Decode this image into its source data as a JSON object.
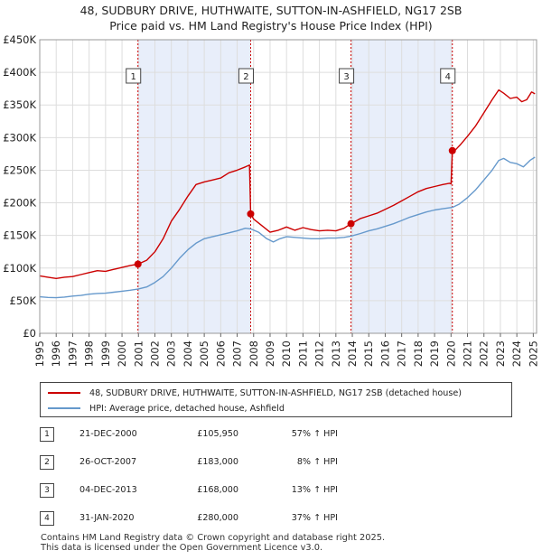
{
  "chart_data": {
    "type": "line",
    "title": "48, SUDBURY DRIVE, HUTHWAITE, SUTTON-IN-ASHFIELD, NG17 2SB",
    "subtitle": "Price paid vs. HM Land Registry's House Price Index (HPI)",
    "x_ticks": [
      "1995",
      "1996",
      "1997",
      "1998",
      "1999",
      "2000",
      "2001",
      "2002",
      "2003",
      "2004",
      "2005",
      "2006",
      "2007",
      "2008",
      "2009",
      "2010",
      "2011",
      "2012",
      "2013",
      "2014",
      "2015",
      "2016",
      "2017",
      "2018",
      "2019",
      "2020",
      "2021",
      "2022",
      "2023",
      "2024",
      "2025"
    ],
    "y_ticks": [
      {
        "value": 0,
        "label": "£0"
      },
      {
        "value": 50000,
        "label": "£50K"
      },
      {
        "value": 100000,
        "label": "£100K"
      },
      {
        "value": 150000,
        "label": "£150K"
      },
      {
        "value": 200000,
        "label": "£200K"
      },
      {
        "value": 250000,
        "label": "£250K"
      },
      {
        "value": 300000,
        "label": "£300K"
      },
      {
        "value": 350000,
        "label": "£350K"
      },
      {
        "value": 400000,
        "label": "£400K"
      },
      {
        "value": 450000,
        "label": "£450K"
      }
    ],
    "xlim": [
      1995.0,
      2025.2
    ],
    "ylim": [
      0,
      450000
    ],
    "grid": true,
    "shaded_periods": [
      [
        2000.97,
        2007.82
      ],
      [
        2013.92,
        2020.08
      ]
    ],
    "series": [
      {
        "name": "48, SUDBURY DRIVE, HUTHWAITE, SUTTON-IN-ASHFIELD, NG17 2SB (detached house)",
        "color": "#cc0000",
        "points": [
          [
            1995.0,
            88000
          ],
          [
            1995.5,
            86000
          ],
          [
            1996.0,
            84000
          ],
          [
            1996.5,
            86000
          ],
          [
            1997.0,
            87000
          ],
          [
            1997.5,
            90000
          ],
          [
            1998.0,
            93000
          ],
          [
            1998.5,
            96000
          ],
          [
            1999.0,
            95000
          ],
          [
            1999.5,
            98000
          ],
          [
            2000.0,
            101000
          ],
          [
            2000.5,
            104000
          ],
          [
            2000.97,
            105950
          ],
          [
            2001.5,
            112000
          ],
          [
            2002.0,
            125000
          ],
          [
            2002.5,
            145000
          ],
          [
            2003.0,
            172000
          ],
          [
            2003.5,
            190000
          ],
          [
            2004.0,
            210000
          ],
          [
            2004.5,
            228000
          ],
          [
            2005.0,
            232000
          ],
          [
            2005.5,
            235000
          ],
          [
            2006.0,
            238000
          ],
          [
            2006.5,
            246000
          ],
          [
            2007.0,
            250000
          ],
          [
            2007.5,
            255000
          ],
          [
            2007.75,
            258000
          ],
          [
            2007.82,
            183000
          ],
          [
            2008.0,
            175000
          ],
          [
            2008.5,
            165000
          ],
          [
            2009.0,
            155000
          ],
          [
            2009.5,
            158000
          ],
          [
            2010.0,
            163000
          ],
          [
            2010.5,
            158000
          ],
          [
            2011.0,
            162000
          ],
          [
            2011.5,
            159000
          ],
          [
            2012.0,
            157000
          ],
          [
            2012.5,
            158000
          ],
          [
            2013.0,
            157000
          ],
          [
            2013.5,
            161000
          ],
          [
            2013.92,
            168000
          ],
          [
            2014.5,
            176000
          ],
          [
            2015.0,
            180000
          ],
          [
            2015.5,
            184000
          ],
          [
            2016.0,
            190000
          ],
          [
            2016.5,
            196000
          ],
          [
            2017.0,
            203000
          ],
          [
            2017.5,
            210000
          ],
          [
            2018.0,
            217000
          ],
          [
            2018.5,
            222000
          ],
          [
            2019.0,
            225000
          ],
          [
            2019.5,
            228000
          ],
          [
            2019.9,
            230000
          ],
          [
            2020.0,
            229000
          ],
          [
            2020.08,
            280000
          ],
          [
            2020.3,
            282000
          ],
          [
            2020.6,
            290000
          ],
          [
            2021.0,
            302000
          ],
          [
            2021.5,
            318000
          ],
          [
            2022.0,
            338000
          ],
          [
            2022.5,
            358000
          ],
          [
            2022.9,
            373000
          ],
          [
            2023.2,
            368000
          ],
          [
            2023.6,
            360000
          ],
          [
            2024.0,
            362000
          ],
          [
            2024.3,
            355000
          ],
          [
            2024.6,
            358000
          ],
          [
            2024.9,
            370000
          ],
          [
            2025.1,
            367000
          ]
        ]
      },
      {
        "name": "HPI: Average price, detached house, Ashfield",
        "color": "#6699cc",
        "points": [
          [
            1995.0,
            56000
          ],
          [
            1995.5,
            55000
          ],
          [
            1996.0,
            54500
          ],
          [
            1996.5,
            55500
          ],
          [
            1997.0,
            57000
          ],
          [
            1997.5,
            58000
          ],
          [
            1998.0,
            60000
          ],
          [
            1998.5,
            61000
          ],
          [
            1999.0,
            61500
          ],
          [
            1999.5,
            63000
          ],
          [
            2000.0,
            64500
          ],
          [
            2000.5,
            66000
          ],
          [
            2001.0,
            68000
          ],
          [
            2001.5,
            71000
          ],
          [
            2002.0,
            78000
          ],
          [
            2002.5,
            87000
          ],
          [
            2003.0,
            100000
          ],
          [
            2003.5,
            115000
          ],
          [
            2004.0,
            128000
          ],
          [
            2004.5,
            138000
          ],
          [
            2005.0,
            145000
          ],
          [
            2005.5,
            148000
          ],
          [
            2006.0,
            151000
          ],
          [
            2006.5,
            154000
          ],
          [
            2007.0,
            157000
          ],
          [
            2007.5,
            161000
          ],
          [
            2007.82,
            160000
          ],
          [
            2008.3,
            155000
          ],
          [
            2008.8,
            145000
          ],
          [
            2009.2,
            140000
          ],
          [
            2009.6,
            145000
          ],
          [
            2010.0,
            148000
          ],
          [
            2010.5,
            147000
          ],
          [
            2011.0,
            146000
          ],
          [
            2011.5,
            145000
          ],
          [
            2012.0,
            145000
          ],
          [
            2012.5,
            146000
          ],
          [
            2013.0,
            146000
          ],
          [
            2013.5,
            147000
          ],
          [
            2013.92,
            149000
          ],
          [
            2014.5,
            153000
          ],
          [
            2015.0,
            157000
          ],
          [
            2015.5,
            160000
          ],
          [
            2016.0,
            164000
          ],
          [
            2016.5,
            168000
          ],
          [
            2017.0,
            173000
          ],
          [
            2017.5,
            178000
          ],
          [
            2018.0,
            182000
          ],
          [
            2018.5,
            186000
          ],
          [
            2019.0,
            189000
          ],
          [
            2019.5,
            191000
          ],
          [
            2020.08,
            193000
          ],
          [
            2020.5,
            198000
          ],
          [
            2021.0,
            208000
          ],
          [
            2021.5,
            220000
          ],
          [
            2022.0,
            235000
          ],
          [
            2022.5,
            250000
          ],
          [
            2022.9,
            265000
          ],
          [
            2023.2,
            268000
          ],
          [
            2023.6,
            262000
          ],
          [
            2024.0,
            260000
          ],
          [
            2024.4,
            255000
          ],
          [
            2024.8,
            265000
          ],
          [
            2025.1,
            270000
          ]
        ]
      }
    ],
    "sales": [
      {
        "num": "1",
        "date": "21-DEC-2000",
        "price": "£105,950",
        "hpi_change": "57% ↑ HPI",
        "x": 2000.97,
        "value": 105950
      },
      {
        "num": "2",
        "date": "26-OCT-2007",
        "price": "£183,000",
        "hpi_change": "8% ↑ HPI",
        "x": 2007.82,
        "value": 183000
      },
      {
        "num": "3",
        "date": "04-DEC-2013",
        "price": "£168,000",
        "hpi_change": "13% ↑ HPI",
        "x": 2013.92,
        "value": 168000
      },
      {
        "num": "4",
        "date": "31-JAN-2020",
        "price": "£280,000",
        "hpi_change": "37% ↑ HPI",
        "x": 2020.08,
        "value": 280000
      }
    ]
  },
  "legend": {
    "property_label": "48, SUDBURY DRIVE, HUTHWAITE, SUTTON-IN-ASHFIELD, NG17 2SB (detached house)",
    "hpi_label": "HPI: Average price, detached house, Ashfield"
  },
  "footer": {
    "line1": "Contains HM Land Registry data © Crown copyright and database right 2025.",
    "line2": "This data is licensed under the Open Government Licence v3.0."
  },
  "colors": {
    "property": "#cc0000",
    "hpi": "#6699cc",
    "shade": "#e8eefa",
    "grid": "#dddddd"
  }
}
